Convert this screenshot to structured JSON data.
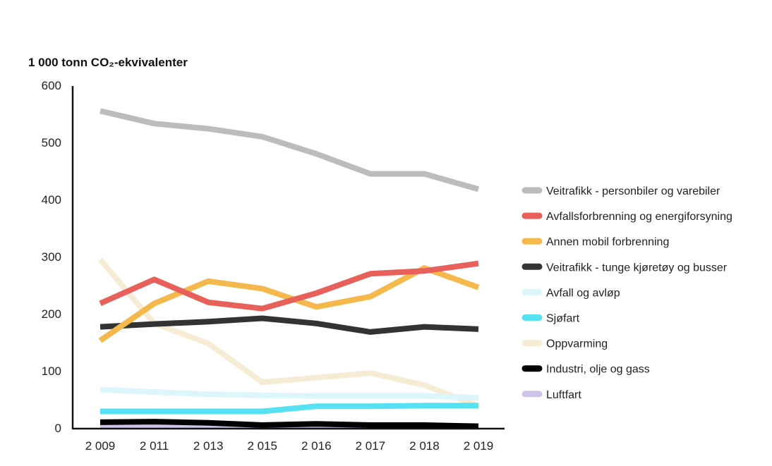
{
  "chart_data": {
    "type": "line",
    "ylabel": "1 000 tonn CO₂-ekvivalenter",
    "xlabel": "",
    "ylim": [
      0,
      600
    ],
    "yticks": [
      "0",
      "100",
      "200",
      "300",
      "400",
      "500",
      "600"
    ],
    "categories": [
      "2 009",
      "2 011",
      "2 013",
      "2 015",
      "2 016",
      "2 017",
      "2 018",
      "2 019"
    ],
    "legend_position": "right",
    "grid": false,
    "series": [
      {
        "name": "Veitrafikk - personbiler og varebiler",
        "color": "#bcbcbc",
        "values": [
          555,
          533,
          524,
          510,
          480,
          445,
          445,
          418
        ]
      },
      {
        "name": "Avfallsforbrenning og energiforsyning",
        "color": "#e8605a",
        "values": [
          218,
          260,
          220,
          209,
          236,
          270,
          275,
          288
        ]
      },
      {
        "name": "Annen mobil forbrenning",
        "color": "#f5b84d",
        "values": [
          153,
          218,
          257,
          244,
          212,
          230,
          280,
          246
        ]
      },
      {
        "name": "Veitrafikk - tunge kjøretøy og busser",
        "color": "#333333",
        "values": [
          177,
          182,
          186,
          192,
          183,
          168,
          177,
          173
        ]
      },
      {
        "name": "Avfall og avløp",
        "color": "#dcf6fb",
        "values": [
          67,
          63,
          59,
          57,
          56,
          56,
          56,
          53
        ]
      },
      {
        "name": "Sjøfart",
        "color": "#56e1f2",
        "values": [
          29,
          29,
          29,
          29,
          38,
          38,
          39,
          39
        ]
      },
      {
        "name": "Oppvarming",
        "color": "#f6ecd6",
        "values": [
          295,
          183,
          148,
          80,
          88,
          96,
          75,
          38
        ]
      },
      {
        "name": "Industri, olje og gass",
        "color": "#000000",
        "values": [
          10,
          11,
          9,
          5,
          7,
          5,
          5,
          3
        ]
      },
      {
        "name": "Luftfart",
        "color": "#cfc3ea",
        "values": [
          4,
          4,
          3,
          2,
          2,
          2,
          2,
          2
        ]
      }
    ]
  }
}
